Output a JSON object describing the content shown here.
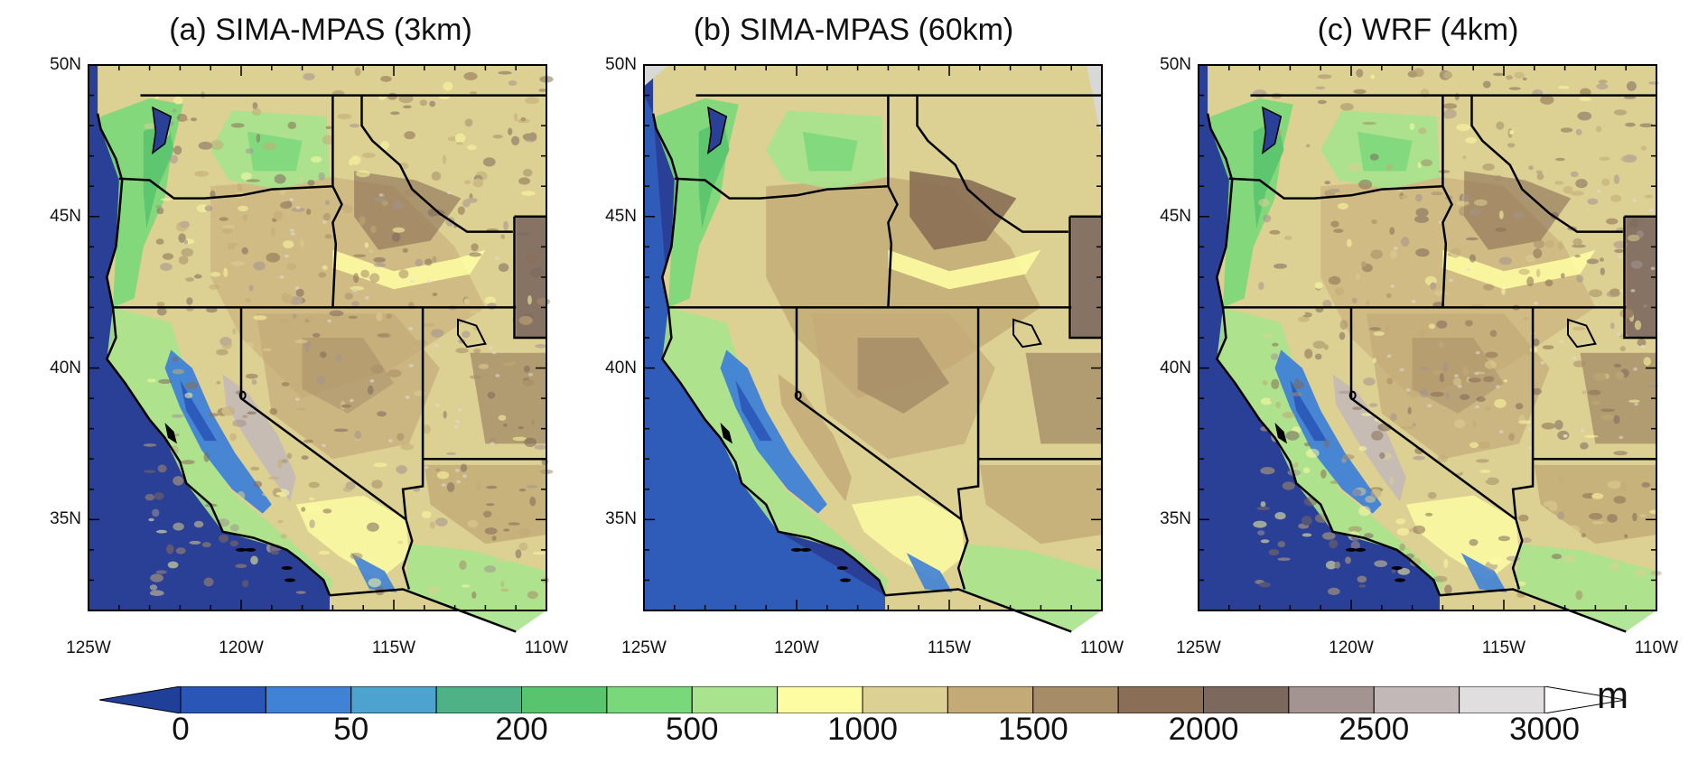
{
  "panels": [
    {
      "title": "(a) SIMA-MPAS (3km)",
      "variant": "fine"
    },
    {
      "title": "(b) SIMA-MPAS (60km)",
      "variant": "coarse"
    },
    {
      "title": "(c) WRF (4km)",
      "variant": "fine"
    }
  ],
  "axes": {
    "lat_ticks": [
      "50N",
      "45N",
      "40N",
      "35N"
    ],
    "lon_ticks": [
      "125W",
      "120W",
      "115W",
      "110W"
    ],
    "lat_values": [
      50,
      45,
      40,
      35
    ],
    "lon_values": [
      -125,
      -120,
      -115,
      -110
    ],
    "lat_range": [
      32,
      50
    ],
    "lon_range": [
      -125,
      -110
    ]
  },
  "colorbar": {
    "unit": "m",
    "labels": [
      "0",
      "50",
      "200",
      "500",
      "1000",
      "1500",
      "2000",
      "2500",
      "3000"
    ],
    "colors": [
      "#1f3f98",
      "#2a56b8",
      "#3f82d6",
      "#4ca3d0",
      "#4fb287",
      "#59c46e",
      "#79d87a",
      "#a9e38d",
      "#fdfca2",
      "#ddd093",
      "#c3aa77",
      "#a68d68",
      "#8a6e55",
      "#7d685e",
      "#a39491",
      "#c2b8b8",
      "#e0dede",
      "#ffffff"
    ]
  },
  "colors": {
    "ocean": "#2a3f96",
    "border": "#000000",
    "missing": "#d8d8d8"
  }
}
